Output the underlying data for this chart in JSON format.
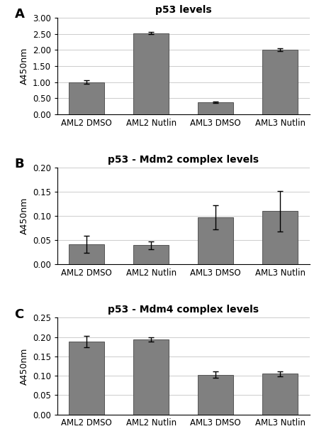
{
  "categories": [
    "AML2 DMSO",
    "AML2 Nutlin",
    "AML3 DMSO",
    "AML3 Nutlin"
  ],
  "panel_A": {
    "title": "p53 levels",
    "values": [
      1.0,
      2.52,
      0.38,
      2.01
    ],
    "errors": [
      0.05,
      0.03,
      0.02,
      0.04
    ],
    "ylim": [
      0,
      3.0
    ],
    "yticks": [
      0.0,
      0.5,
      1.0,
      1.5,
      2.0,
      2.5,
      3.0
    ]
  },
  "panel_B": {
    "title": "p53 - Mdm2 complex levels",
    "values": [
      0.042,
      0.04,
      0.098,
      0.11
    ],
    "errors": [
      0.018,
      0.008,
      0.025,
      0.042
    ],
    "ylim": [
      0,
      0.2
    ],
    "yticks": [
      0.0,
      0.05,
      0.1,
      0.15,
      0.2
    ]
  },
  "panel_C": {
    "title": "p53 - Mdm4 complex levels",
    "values": [
      0.188,
      0.194,
      0.103,
      0.105
    ],
    "errors": [
      0.015,
      0.006,
      0.008,
      0.007
    ],
    "ylim": [
      0,
      0.25
    ],
    "yticks": [
      0.0,
      0.05,
      0.1,
      0.15,
      0.2,
      0.25
    ]
  },
  "bar_color": "#808080",
  "bar_edgecolor": "#555555",
  "ylabel": "A450nm",
  "panel_labels": [
    "A",
    "B",
    "C"
  ],
  "background_color": "#ffffff",
  "bar_width": 0.55
}
